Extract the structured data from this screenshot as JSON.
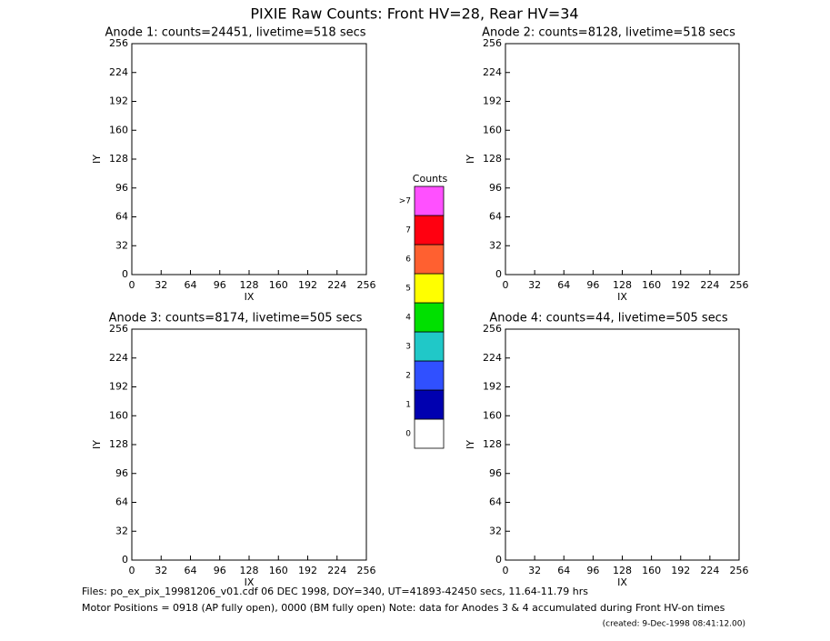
{
  "title": "PIXIE Raw Counts:  Front HV=28, Rear HV=34",
  "chart_data": [
    {
      "type": "heatmap",
      "title": "Anode 1: counts=24451, livetime=518 secs",
      "xlabel": "IX",
      "ylabel": "IY",
      "xlim": [
        0,
        256
      ],
      "xticks": [
        0,
        32,
        64,
        96,
        128,
        160,
        192,
        224,
        256
      ],
      "ylim": [
        0,
        256
      ],
      "yticks": [
        0,
        32,
        64,
        96,
        128,
        160,
        192,
        224,
        256
      ]
    },
    {
      "type": "heatmap",
      "title": "Anode 2: counts=8128, livetime=518 secs",
      "xlabel": "IX",
      "ylabel": "IY",
      "xlim": [
        0,
        256
      ],
      "xticks": [
        0,
        32,
        64,
        96,
        128,
        160,
        192,
        224,
        256
      ],
      "ylim": [
        0,
        256
      ],
      "yticks": [
        0,
        32,
        64,
        96,
        128,
        160,
        192,
        224,
        256
      ]
    },
    {
      "type": "heatmap",
      "title": "Anode 3: counts=8174, livetime=505 secs",
      "xlabel": "IX",
      "ylabel": "IY",
      "xlim": [
        0,
        256
      ],
      "xticks": [
        0,
        32,
        64,
        96,
        128,
        160,
        192,
        224,
        256
      ],
      "ylim": [
        0,
        256
      ],
      "yticks": [
        0,
        32,
        64,
        96,
        128,
        160,
        192,
        224,
        256
      ]
    },
    {
      "type": "heatmap",
      "title": "Anode 4: counts=44, livetime=505 secs",
      "xlabel": "IX",
      "ylabel": "IY",
      "xlim": [
        0,
        256
      ],
      "xticks": [
        0,
        32,
        64,
        96,
        128,
        160,
        192,
        224,
        256
      ],
      "ylim": [
        0,
        256
      ],
      "yticks": [
        0,
        32,
        64,
        96,
        128,
        160,
        192,
        224,
        256
      ]
    },
    {
      "type": "colorbar",
      "title": "Counts",
      "categories": [
        "0",
        "1",
        "2",
        "3",
        "4",
        "5",
        "6",
        "7",
        ">7"
      ],
      "colors": [
        "#ffffff",
        "#0000b0",
        "#3050ff",
        "#20c8c8",
        "#00e000",
        "#ffff00",
        "#ff6030",
        "#ff0010",
        "#ff50ff"
      ]
    }
  ],
  "footer": {
    "files": "Files: po_ex_pix_19981206_v01.cdf    06 DEC 1998, DOY=340, UT=41893-42450 secs, 11.64-11.79 hrs",
    "motor": "Motor Positions = 0918 (AP fully open), 0000 (BM fully open)    Note: data for Anodes 3 & 4 accumulated during Front HV-on times",
    "created": "(created:  9-Dec-1998 08:41:12.00)"
  }
}
